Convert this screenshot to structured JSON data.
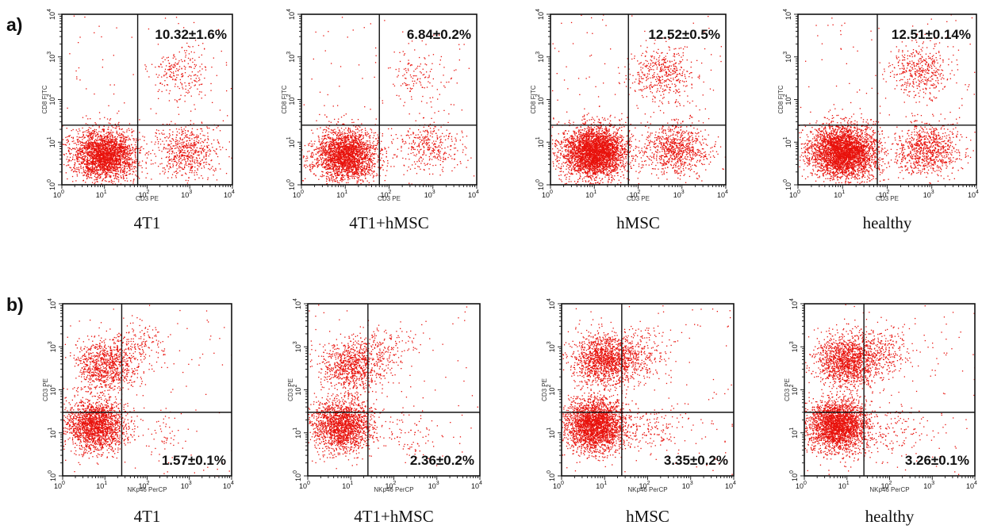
{
  "panels": [
    {
      "letter": "a)"
    },
    {
      "letter": "b)"
    }
  ],
  "chart_data": [
    {
      "type": "scatter",
      "panel": "a",
      "caption": "4T1",
      "xlabel": "CD3 PE",
      "ylabel": "CD8 FITC",
      "xscale": "log",
      "yscale": "log",
      "xlim": [
        1,
        10000
      ],
      "ylim": [
        1,
        10000
      ],
      "x_ticks": [
        "10^0",
        "10^1",
        "10^2",
        "10^3",
        "10^4"
      ],
      "y_ticks": [
        "10^0",
        "10^1",
        "10^2",
        "10^3",
        "10^4"
      ],
      "gate": {
        "x": 60,
        "y": 25
      },
      "annotation": "10.32±1.6%",
      "annotation_quadrant": "upper-right",
      "populations": [
        {
          "x": 10,
          "y": 5,
          "n": 2600
        },
        {
          "x": 800,
          "y": 6,
          "n": 600
        },
        {
          "x": 600,
          "y": 400,
          "n": 220
        }
      ]
    },
    {
      "type": "scatter",
      "panel": "a",
      "caption": "4T1+hMSC",
      "xlabel": "CD3 PE",
      "ylabel": "CD8 FITC",
      "xscale": "log",
      "yscale": "log",
      "xlim": [
        1,
        10000
      ],
      "ylim": [
        1,
        10000
      ],
      "x_ticks": [
        "10^0",
        "10^1",
        "10^2",
        "10^3",
        "10^4"
      ],
      "y_ticks": [
        "10^0",
        "10^1",
        "10^2",
        "10^3",
        "10^4"
      ],
      "gate": {
        "x": 60,
        "y": 25
      },
      "annotation": "6.84±0.2%",
      "annotation_quadrant": "upper-right",
      "populations": [
        {
          "x": 10,
          "y": 5,
          "n": 2500
        },
        {
          "x": 800,
          "y": 8,
          "n": 350
        },
        {
          "x": 500,
          "y": 320,
          "n": 130
        }
      ]
    },
    {
      "type": "scatter",
      "panel": "a",
      "caption": "hMSC",
      "xlabel": "CD3 PE",
      "ylabel": "CD8 FITC",
      "xscale": "log",
      "yscale": "log",
      "xlim": [
        1,
        10000
      ],
      "ylim": [
        1,
        10000
      ],
      "x_ticks": [
        "10^0",
        "10^1",
        "10^2",
        "10^3",
        "10^4"
      ],
      "y_ticks": [
        "10^0",
        "10^1",
        "10^2",
        "10^3",
        "10^4"
      ],
      "gate": {
        "x": 60,
        "y": 25
      },
      "annotation": "12.52±0.5%",
      "annotation_quadrant": "upper-right",
      "populations": [
        {
          "x": 10,
          "y": 6,
          "n": 3500
        },
        {
          "x": 700,
          "y": 7,
          "n": 800
        },
        {
          "x": 350,
          "y": 450,
          "n": 420
        }
      ]
    },
    {
      "type": "scatter",
      "panel": "a",
      "caption": "healthy",
      "xlabel": "CD3 PE",
      "ylabel": "CD8 FITC",
      "xscale": "log",
      "yscale": "log",
      "xlim": [
        1,
        10000
      ],
      "ylim": [
        1,
        10000
      ],
      "x_ticks": [
        "10^0",
        "10^1",
        "10^2",
        "10^3",
        "10^4"
      ],
      "y_ticks": [
        "10^0",
        "10^1",
        "10^2",
        "10^3",
        "10^4"
      ],
      "gate": {
        "x": 60,
        "y": 25
      },
      "annotation": "12.51±0.14%",
      "annotation_quadrant": "upper-right",
      "populations": [
        {
          "x": 10,
          "y": 6,
          "n": 3500
        },
        {
          "x": 800,
          "y": 7,
          "n": 850
        },
        {
          "x": 500,
          "y": 500,
          "n": 420
        }
      ]
    },
    {
      "type": "scatter",
      "panel": "b",
      "caption": "4T1",
      "xlabel": "NKp46 PerCP",
      "ylabel": "CD3 PE",
      "xscale": "log",
      "yscale": "log",
      "xlim": [
        1,
        10000
      ],
      "ylim": [
        1,
        10000
      ],
      "x_ticks": [
        "10^0",
        "10^1",
        "10^2",
        "10^3",
        "10^4"
      ],
      "y_ticks": [
        "10^0",
        "10^1",
        "10^2",
        "10^3",
        "10^4"
      ],
      "gate": {
        "x": 25,
        "y": 30
      },
      "annotation": "1.57±0.1%",
      "annotation_quadrant": "lower-right",
      "populations": [
        {
          "x": 6,
          "y": 15,
          "n": 1900
        },
        {
          "x": 10,
          "y": 400,
          "n": 900
        },
        {
          "x": 60,
          "y": 1000,
          "n": 180
        },
        {
          "x": 200,
          "y": 10,
          "n": 55
        }
      ]
    },
    {
      "type": "scatter",
      "panel": "b",
      "caption": "4T1+hMSC",
      "xlabel": "NKp46 PerCP",
      "ylabel": "CD3 PE",
      "xscale": "log",
      "yscale": "log",
      "xlim": [
        1,
        10000
      ],
      "ylim": [
        1,
        10000
      ],
      "x_ticks": [
        "10^0",
        "10^1",
        "10^2",
        "10^3",
        "10^4"
      ],
      "y_ticks": [
        "10^0",
        "10^1",
        "10^2",
        "10^3",
        "10^4"
      ],
      "gate": {
        "x": 25,
        "y": 30
      },
      "annotation": "2.36±0.2%",
      "annotation_quadrant": "lower-right",
      "populations": [
        {
          "x": 6,
          "y": 15,
          "n": 1800
        },
        {
          "x": 10,
          "y": 350,
          "n": 850
        },
        {
          "x": 60,
          "y": 900,
          "n": 160
        },
        {
          "x": 200,
          "y": 10,
          "n": 80
        }
      ]
    },
    {
      "type": "scatter",
      "panel": "b",
      "caption": "hMSC",
      "xlabel": "NKp46 PerCP",
      "ylabel": "CD3 PE",
      "xscale": "log",
      "yscale": "log",
      "xlim": [
        1,
        10000
      ],
      "ylim": [
        1,
        10000
      ],
      "x_ticks": [
        "10^0",
        "10^1",
        "10^2",
        "10^3",
        "10^4"
      ],
      "y_ticks": [
        "10^0",
        "10^1",
        "10^2",
        "10^3",
        "10^4"
      ],
      "gate": {
        "x": 25,
        "y": 30
      },
      "annotation": "3.35±0.2%",
      "annotation_quadrant": "lower-right",
      "populations": [
        {
          "x": 6,
          "y": 15,
          "n": 2600
        },
        {
          "x": 10,
          "y": 500,
          "n": 1400
        },
        {
          "x": 60,
          "y": 700,
          "n": 250
        },
        {
          "x": 150,
          "y": 12,
          "n": 130
        }
      ]
    },
    {
      "type": "scatter",
      "panel": "b",
      "caption": "healthy",
      "xlabel": "NKp46 PerCP",
      "ylabel": "CD3 PE",
      "xscale": "log",
      "yscale": "log",
      "xlim": [
        1,
        10000
      ],
      "ylim": [
        1,
        10000
      ],
      "x_ticks": [
        "10^0",
        "10^1",
        "10^2",
        "10^3",
        "10^4"
      ],
      "y_ticks": [
        "10^0",
        "10^1",
        "10^2",
        "10^3",
        "10^4"
      ],
      "gate": {
        "x": 25,
        "y": 30
      },
      "annotation": "3.26±0.1%",
      "annotation_quadrant": "lower-right",
      "populations": [
        {
          "x": 6,
          "y": 15,
          "n": 2600
        },
        {
          "x": 10,
          "y": 500,
          "n": 1400
        },
        {
          "x": 60,
          "y": 800,
          "n": 260
        },
        {
          "x": 150,
          "y": 12,
          "n": 120
        }
      ]
    }
  ],
  "colors": {
    "dots": "#e8120c",
    "frame": "#111111"
  }
}
